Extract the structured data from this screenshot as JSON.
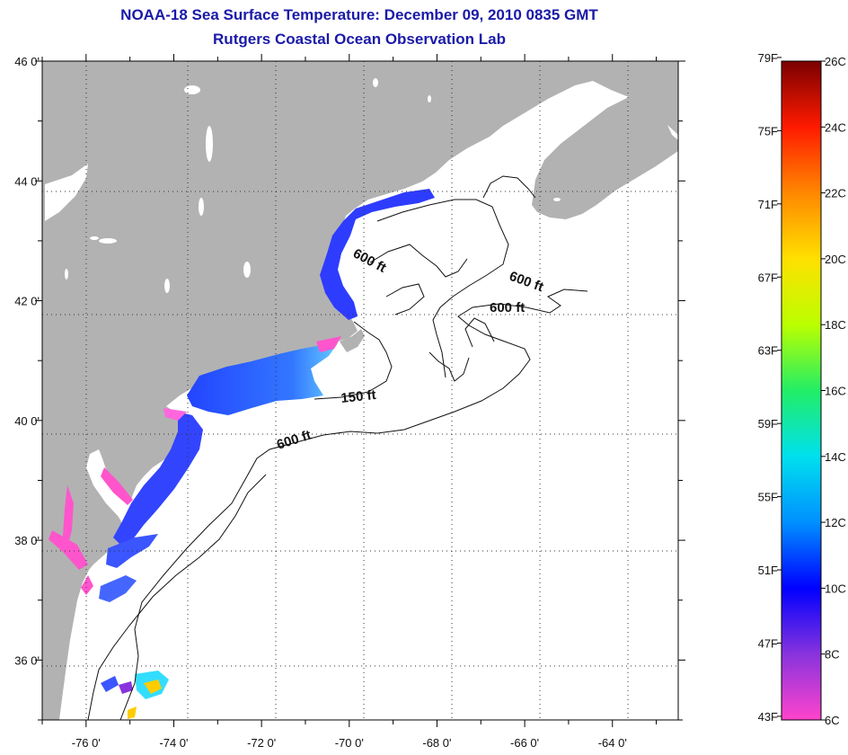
{
  "header": {
    "title": "NOAA-18 Sea Surface Temperature:  December 09, 2010 0835 GMT",
    "subtitle": "Rutgers Coastal Ocean Observation Lab"
  },
  "map": {
    "lon_range": [
      -77,
      -62.5
    ],
    "lat_range": [
      35,
      46
    ],
    "lat_ticks": [
      {
        "v": 46,
        "label": "46 0'"
      },
      {
        "v": 44,
        "label": "44 0'"
      },
      {
        "v": 42,
        "label": "42 0'"
      },
      {
        "v": 40,
        "label": "40 0'"
      },
      {
        "v": 38,
        "label": "38 0'"
      },
      {
        "v": 36,
        "label": "36 0'"
      }
    ],
    "lon_ticks": [
      {
        "v": -76,
        "label": "-76 0'"
      },
      {
        "v": -74,
        "label": "-74 0'"
      },
      {
        "v": -72,
        "label": "-72 0'"
      },
      {
        "v": -70,
        "label": "-70 0'"
      },
      {
        "v": -68,
        "label": "-68 0'"
      },
      {
        "v": -66,
        "label": "-66 0'"
      },
      {
        "v": -64,
        "label": "-64 0'"
      }
    ],
    "contour_labels": [
      "600 ft",
      "600 ft",
      "600 ft",
      "150 ft",
      "600 ft"
    ],
    "land_color": "#b2b2b2",
    "ocean_color": "#ffffff"
  },
  "colorbar": {
    "f_labels": [
      "79F",
      "75F",
      "71F",
      "67F",
      "63F",
      "59F",
      "55F",
      "51F",
      "47F",
      "43F"
    ],
    "c_labels": [
      "26C",
      "24C",
      "22C",
      "20C",
      "18C",
      "16C",
      "14C",
      "12C",
      "10C",
      "8C",
      "6C"
    ],
    "c_min": 6,
    "c_max": 26
  }
}
